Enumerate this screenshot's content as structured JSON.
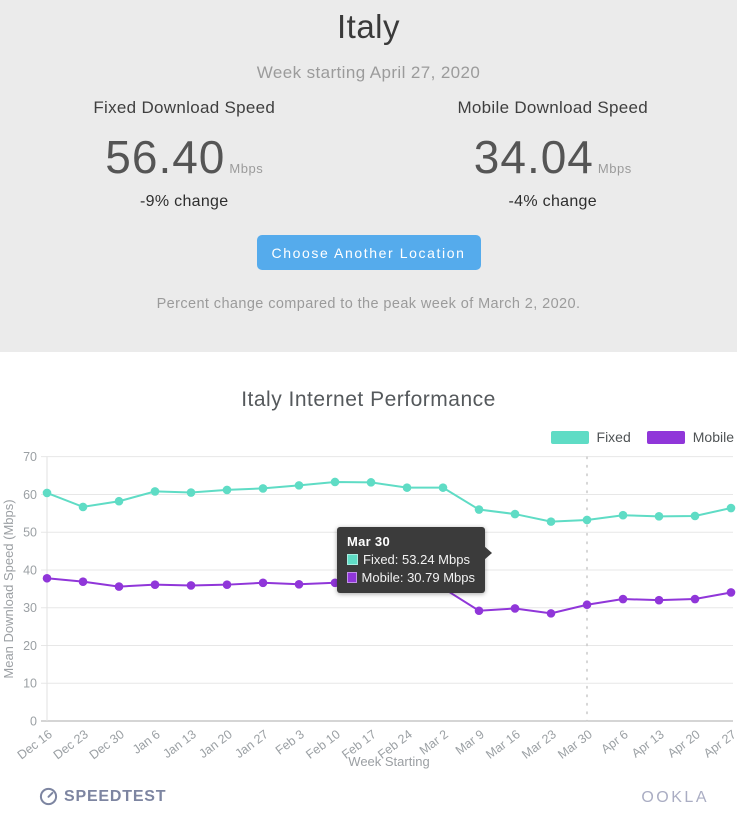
{
  "header": {
    "title": "Italy",
    "subtitle": "Week starting April 27, 2020",
    "fixed": {
      "label": "Fixed Download Speed",
      "value": "56.40",
      "unit": "Mbps",
      "change": "-9% change"
    },
    "mobile": {
      "label": "Mobile Download Speed",
      "value": "34.04",
      "unit": "Mbps",
      "change": "-4% change"
    },
    "button_label": "Choose Another Location",
    "footnote": "Percent change compared to the peak week of March 2, 2020.",
    "button_color": "#55abec",
    "background_color": "#ebebeb"
  },
  "chart_data": {
    "type": "line",
    "title": "Italy Internet Performance",
    "xlabel": "Week Starting",
    "ylabel": "Mean Download Speed (Mbps)",
    "ylim": [
      0,
      70
    ],
    "yticks": [
      0,
      10,
      20,
      30,
      40,
      50,
      60,
      70
    ],
    "grid": true,
    "legend_position": "top-right",
    "reference_line_x": "Mar 30",
    "categories": [
      "Dec 16",
      "Dec 23",
      "Dec 30",
      "Jan 6",
      "Jan 13",
      "Jan 20",
      "Jan 27",
      "Feb 3",
      "Feb 10",
      "Feb 17",
      "Feb 24",
      "Mar 2",
      "Mar 9",
      "Mar 16",
      "Mar 23",
      "Mar 30",
      "Apr 6",
      "Apr 13",
      "Apr 20",
      "Apr 27"
    ],
    "series": [
      {
        "name": "Fixed",
        "color": "#5fdcc5",
        "values": [
          60.4,
          56.7,
          58.2,
          60.8,
          60.5,
          61.2,
          61.6,
          62.4,
          63.3,
          63.2,
          61.8,
          61.8,
          56.0,
          54.8,
          52.8,
          53.24,
          54.5,
          54.2,
          54.3,
          56.4
        ]
      },
      {
        "name": "Mobile",
        "color": "#9036d9",
        "values": [
          37.8,
          36.9,
          35.6,
          36.1,
          35.9,
          36.1,
          36.6,
          36.2,
          36.6,
          36.9,
          35.3,
          35.2,
          29.2,
          29.8,
          28.5,
          30.79,
          32.3,
          32.0,
          32.3,
          34.04
        ]
      }
    ]
  },
  "tooltip": {
    "title": "Mar 30",
    "rows": [
      {
        "text": "Fixed: 53.24 Mbps",
        "color": "#5fdcc5"
      },
      {
        "text": "Mobile: 30.79 Mbps",
        "color": "#9036d9"
      }
    ]
  },
  "footer": {
    "speedtest": "SPEEDTEST",
    "ookla": "OOKLA"
  }
}
